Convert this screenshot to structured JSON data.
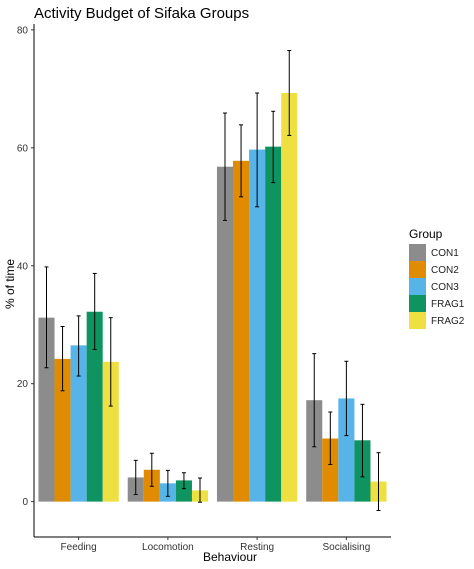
{
  "chart_data": {
    "type": "bar",
    "title": "Activity Budget of Sifaka Groups",
    "xlabel": "Behaviour",
    "ylabel": "% of time",
    "ylim": [
      -6,
      81
    ],
    "yticks": [
      0,
      20,
      40,
      60,
      80
    ],
    "categories": [
      "Feeding",
      "Locomotion",
      "Resting",
      "Socialising"
    ],
    "legend": {
      "title": "Group",
      "position": "right"
    },
    "grid": false,
    "series": [
      {
        "name": "CON1",
        "color": "#8c8c8c",
        "values": [
          31.2,
          4.1,
          56.8,
          17.2
        ],
        "err_low": [
          22.7,
          1.2,
          47.7,
          9.3
        ],
        "err_high": [
          39.8,
          7.0,
          65.9,
          25.1
        ]
      },
      {
        "name": "CON2",
        "color": "#e08b00",
        "values": [
          24.2,
          5.4,
          57.8,
          10.7
        ],
        "err_low": [
          18.8,
          2.6,
          51.7,
          6.3
        ],
        "err_high": [
          29.7,
          8.2,
          63.9,
          15.2
        ]
      },
      {
        "name": "CON3",
        "color": "#56b4e9",
        "values": [
          26.5,
          3.1,
          59.7,
          17.5
        ],
        "err_low": [
          21.3,
          0.9,
          50.0,
          11.2
        ],
        "err_high": [
          31.5,
          5.3,
          69.3,
          23.8
        ]
      },
      {
        "name": "FRAG1",
        "color": "#0f9461",
        "values": [
          32.2,
          3.6,
          60.2,
          10.4
        ],
        "err_low": [
          25.8,
          2.2,
          54.1,
          4.2
        ],
        "err_high": [
          38.7,
          4.9,
          66.2,
          16.5
        ]
      },
      {
        "name": "FRAG2",
        "color": "#ede040",
        "values": [
          23.7,
          1.9,
          69.3,
          3.4
        ],
        "err_low": [
          16.2,
          -0.1,
          62.1,
          -1.5
        ],
        "err_high": [
          31.2,
          4.0,
          76.5,
          8.3
        ]
      }
    ]
  }
}
